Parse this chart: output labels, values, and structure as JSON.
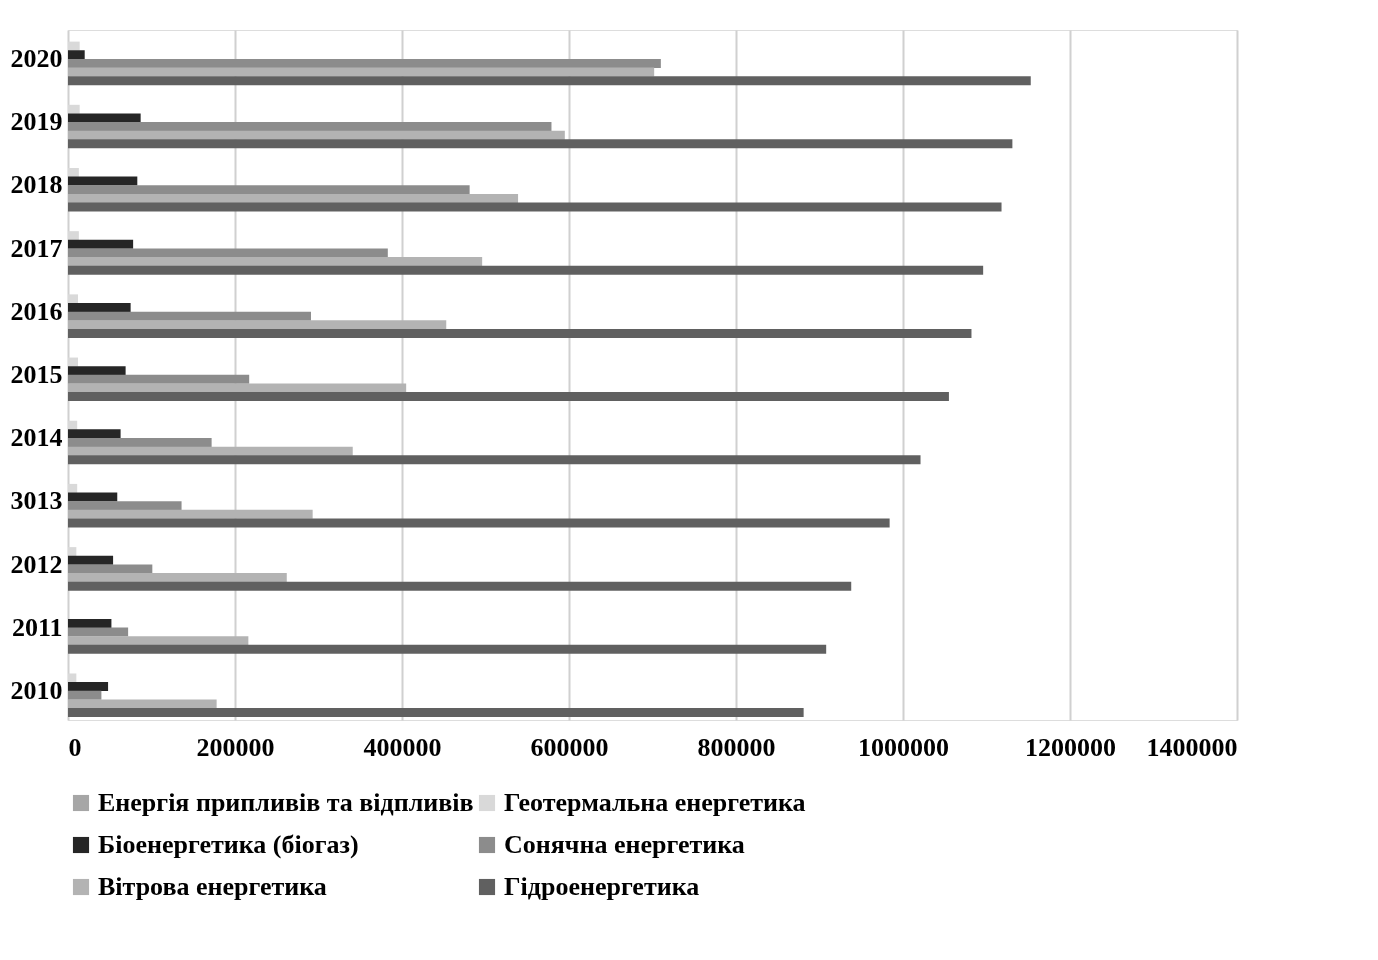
{
  "chart_data": {
    "type": "bar",
    "orientation": "horizontal",
    "categories": [
      "2020",
      "2019",
      "2018",
      "2017",
      "2016",
      "2015",
      "2014",
      "3013",
      "2012",
      "2011",
      "2010"
    ],
    "series": [
      {
        "name": "Енергія припливів та відпливів",
        "color": "#a6a6a6",
        "values": [
          null,
          null,
          null,
          null,
          null,
          null,
          null,
          null,
          null,
          null,
          null
        ]
      },
      {
        "name": "Геотермальна енергетика",
        "color": "#d9d9d9",
        "values": [
          14000,
          14000,
          13000,
          13000,
          12000,
          12000,
          11000,
          11000,
          10000,
          null,
          10000
        ]
      },
      {
        "name": " Біоенергетика (біогаз)",
        "color": "#262626",
        "values": [
          20000,
          87000,
          83000,
          78000,
          75000,
          69000,
          63000,
          59000,
          54000,
          52000,
          48000
        ]
      },
      {
        "name": "Сонячна енергетика",
        "color": "#8c8c8c",
        "values": [
          710000,
          579000,
          481000,
          383000,
          291000,
          217000,
          172000,
          136000,
          101000,
          72000,
          40000
        ]
      },
      {
        "name": "Вітрова енергетика",
        "color": "#b3b3b3",
        "values": [
          702000,
          595000,
          539000,
          496000,
          453000,
          405000,
          341000,
          293000,
          262000,
          216000,
          178000
        ]
      },
      {
        "name": "Гідроенергетика",
        "color": "#606060",
        "values": [
          1153000,
          1131000,
          1118000,
          1096000,
          1082000,
          1055000,
          1021000,
          984000,
          938000,
          908000,
          881000
        ]
      }
    ],
    "xlim": [
      0,
      1400000
    ],
    "xticks": [
      0,
      200000,
      400000,
      600000,
      800000,
      1000000,
      1200000,
      1400000
    ],
    "grid": "x",
    "legend": "bottom"
  }
}
